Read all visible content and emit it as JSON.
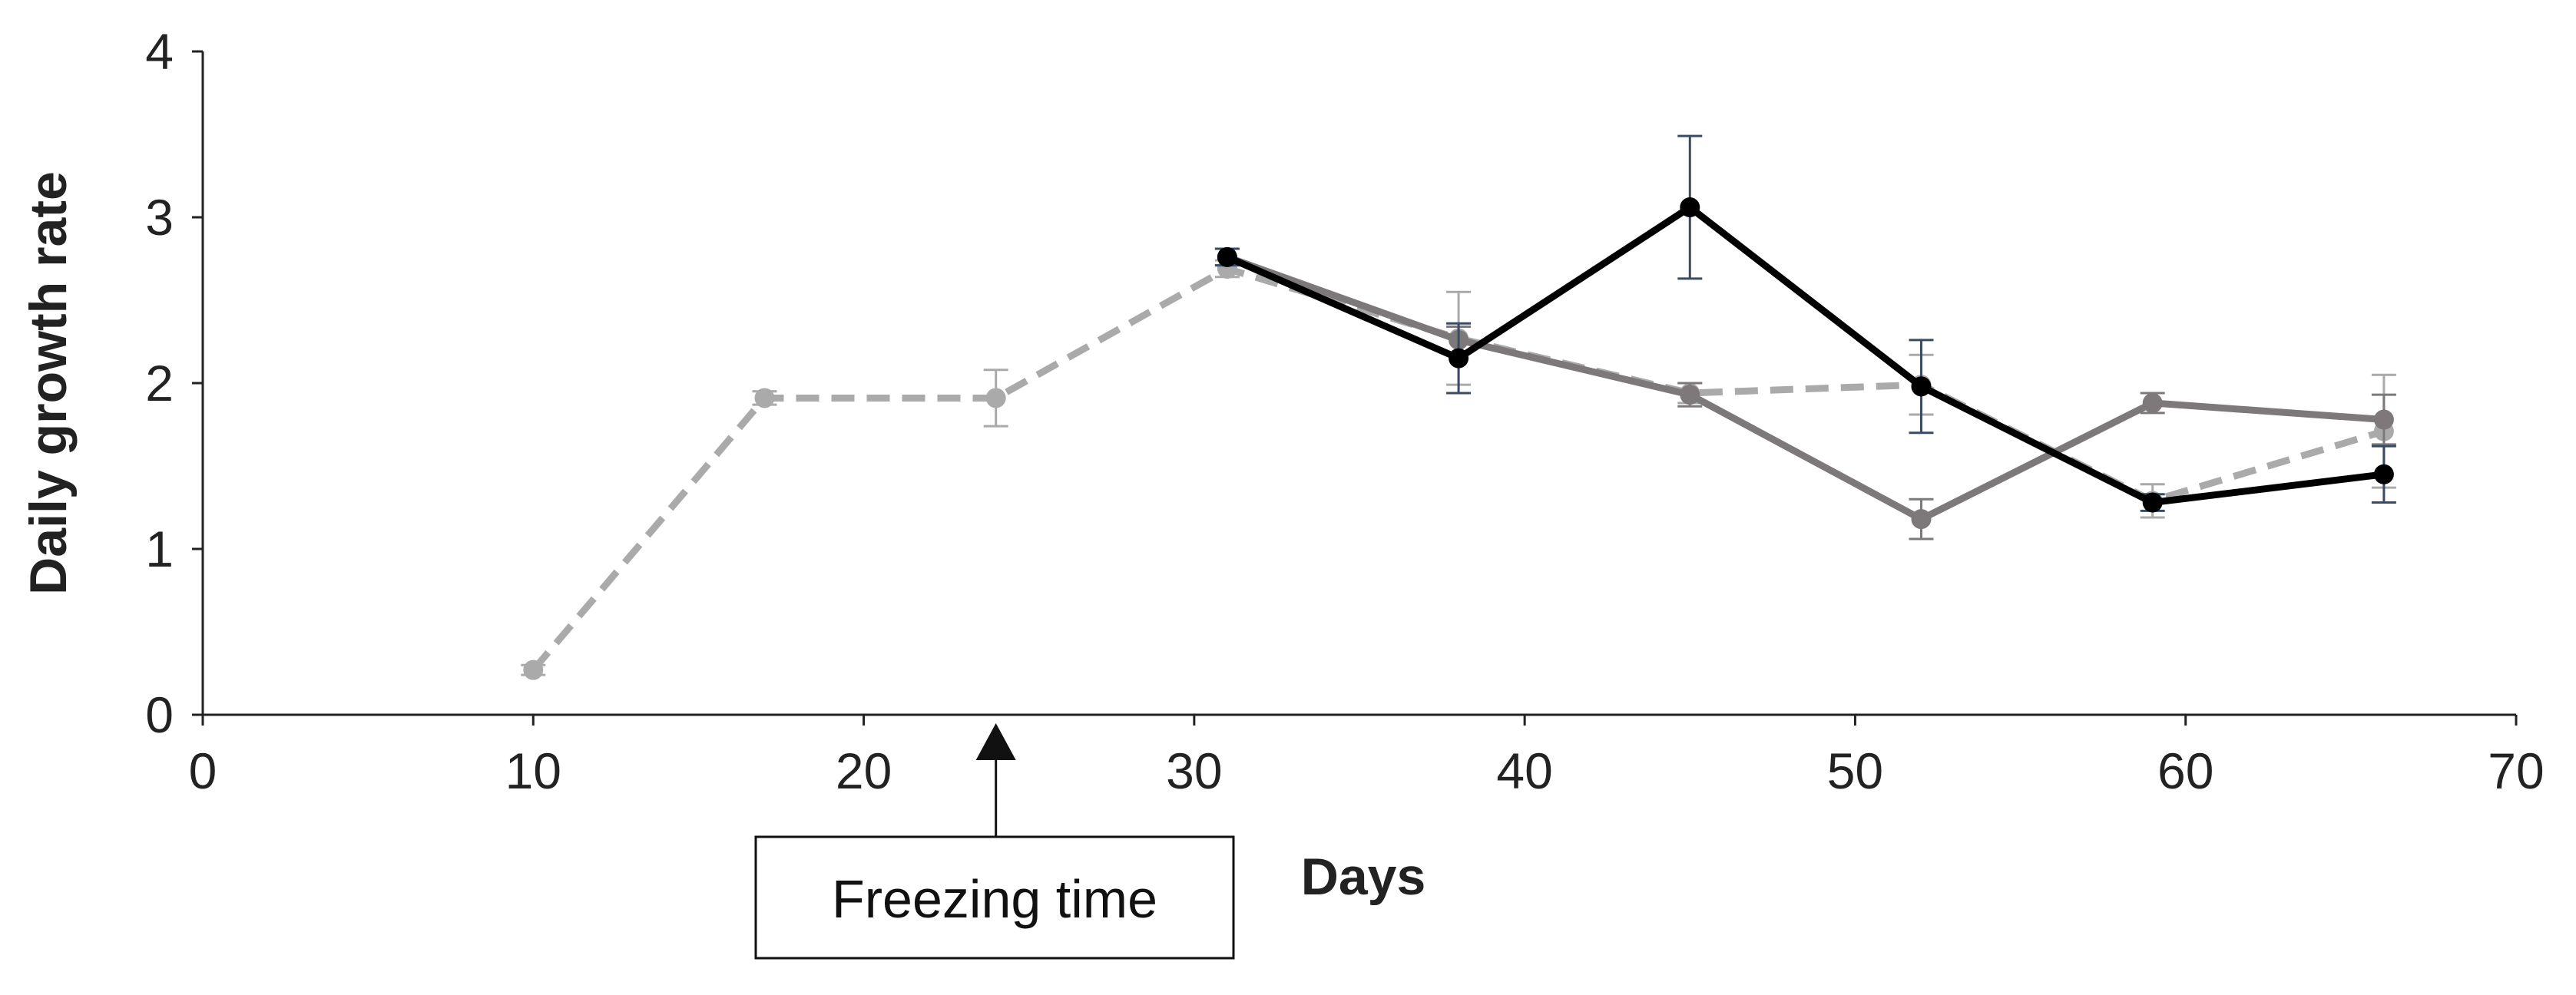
{
  "chart_data": {
    "type": "line",
    "xlabel": "Days",
    "ylabel": "Daily growth rate",
    "xlim": [
      0,
      70
    ],
    "ylim": [
      0,
      4
    ],
    "xticks": [
      "0",
      "10",
      "20",
      "30",
      "40",
      "50",
      "60",
      "70"
    ],
    "yticks": [
      "0",
      "1",
      "2",
      "3",
      "4"
    ],
    "grid": false,
    "legend": "none",
    "series": [
      {
        "style": "dashed",
        "color": "#AAAAAA",
        "x": [
          10,
          17,
          24,
          31,
          38,
          45,
          52,
          59,
          66
        ],
        "y": [
          0.27,
          1.91,
          1.91,
          2.69,
          2.27,
          1.94,
          1.99,
          1.29,
          1.71
        ],
        "error": [
          0.03,
          0.04,
          0.17,
          0.05,
          0.28,
          0.06,
          0.18,
          0.1,
          0.34
        ]
      },
      {
        "style": "solid",
        "color": "#7D7879",
        "x": [
          31,
          38,
          45,
          52,
          59,
          66
        ],
        "y": [
          2.76,
          2.26,
          1.93,
          1.18,
          1.88,
          1.78
        ],
        "error": [
          0.05,
          0.08,
          0.07,
          0.12,
          0.06,
          0.15
        ]
      },
      {
        "style": "solid",
        "color": "#000000",
        "errorColor": "#3B4B63",
        "x": [
          31,
          38,
          45,
          52,
          59,
          66
        ],
        "y": [
          2.76,
          2.15,
          3.06,
          1.98,
          1.28,
          1.45
        ],
        "error": [
          0.05,
          0.21,
          0.43,
          0.28,
          0.05,
          0.17
        ]
      }
    ],
    "annotation": {
      "text": "Freezing time",
      "x": 24
    }
  }
}
